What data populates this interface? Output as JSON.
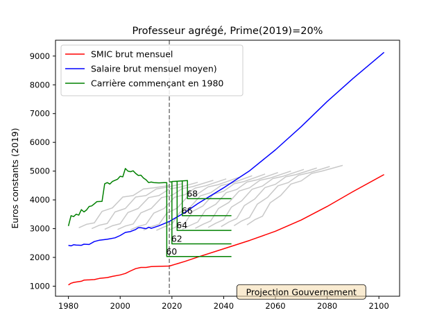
{
  "chart_data": {
    "type": "line",
    "title": "Professeur agrégé, Prime(2019)=20%",
    "xlabel": "",
    "ylabel": "Euros constants (2019)",
    "xlim": [
      1975,
      2108
    ],
    "ylim": [
      650,
      9550
    ],
    "xticks": [
      1980,
      2000,
      2020,
      2040,
      2060,
      2080,
      2100
    ],
    "yticks": [
      1000,
      2000,
      3000,
      4000,
      5000,
      6000,
      7000,
      8000,
      9000
    ],
    "grid": false,
    "legend_position": "top-left",
    "reference_line": {
      "x": 2019,
      "style": "dashed",
      "color": "#808080"
    },
    "annotation_box": {
      "text": "Projection Gouvernement",
      "x": 2070,
      "y": 800
    },
    "series": [
      {
        "name": "SMIC brut mensuel",
        "color": "#ff0000",
        "legend": true,
        "points": [
          [
            1980,
            1040
          ],
          [
            1981,
            1100
          ],
          [
            1982,
            1130
          ],
          [
            1983,
            1145
          ],
          [
            1985,
            1170
          ],
          [
            1986,
            1210
          ],
          [
            1990,
            1230
          ],
          [
            1992,
            1270
          ],
          [
            1995,
            1300
          ],
          [
            1997,
            1340
          ],
          [
            2000,
            1390
          ],
          [
            2002,
            1440
          ],
          [
            2004,
            1530
          ],
          [
            2006,
            1610
          ],
          [
            2008,
            1650
          ],
          [
            2010,
            1650
          ],
          [
            2012,
            1680
          ],
          [
            2015,
            1690
          ],
          [
            2019,
            1700
          ],
          [
            2025,
            1860
          ],
          [
            2030,
            2010
          ],
          [
            2040,
            2300
          ],
          [
            2050,
            2590
          ],
          [
            2060,
            2910
          ],
          [
            2070,
            3300
          ],
          [
            2080,
            3770
          ],
          [
            2090,
            4290
          ],
          [
            2102,
            4880
          ]
        ]
      },
      {
        "name": "Salaire brut mensuel moyen)",
        "color": "#0000ff",
        "legend": true,
        "points": [
          [
            1980,
            2420
          ],
          [
            1981,
            2400
          ],
          [
            1982,
            2440
          ],
          [
            1983,
            2430
          ],
          [
            1985,
            2420
          ],
          [
            1986,
            2460
          ],
          [
            1988,
            2450
          ],
          [
            1990,
            2550
          ],
          [
            1992,
            2600
          ],
          [
            1995,
            2630
          ],
          [
            1998,
            2680
          ],
          [
            2000,
            2760
          ],
          [
            2002,
            2870
          ],
          [
            2004,
            2900
          ],
          [
            2006,
            2970
          ],
          [
            2007,
            3030
          ],
          [
            2008,
            3030
          ],
          [
            2010,
            3000
          ],
          [
            2011,
            3050
          ],
          [
            2012,
            3010
          ],
          [
            2015,
            3100
          ],
          [
            2019,
            3250
          ],
          [
            2025,
            3560
          ],
          [
            2030,
            3870
          ],
          [
            2040,
            4420
          ],
          [
            2050,
            5010
          ],
          [
            2060,
            5740
          ],
          [
            2070,
            6550
          ],
          [
            2080,
            7420
          ],
          [
            2090,
            8220
          ],
          [
            2102,
            9130
          ]
        ]
      },
      {
        "name": "Carrière commençant en 1980",
        "color": "#008000",
        "legend": true,
        "points": [
          [
            1980,
            3090
          ],
          [
            1981,
            3450
          ],
          [
            1982,
            3420
          ],
          [
            1983,
            3500
          ],
          [
            1984,
            3470
          ],
          [
            1985,
            3660
          ],
          [
            1986,
            3580
          ],
          [
            1987,
            3650
          ],
          [
            1988,
            3770
          ],
          [
            1989,
            3790
          ],
          [
            1990,
            3860
          ],
          [
            1991,
            3940
          ],
          [
            1993,
            3950
          ],
          [
            1994,
            4560
          ],
          [
            1995,
            4600
          ],
          [
            1996,
            4550
          ],
          [
            1997,
            4640
          ],
          [
            1999,
            4720
          ],
          [
            2000,
            4820
          ],
          [
            2001,
            4800
          ],
          [
            2002,
            5090
          ],
          [
            2003,
            5000
          ],
          [
            2004,
            4980
          ],
          [
            2005,
            5010
          ],
          [
            2006,
            4920
          ],
          [
            2007,
            4850
          ],
          [
            2008,
            4860
          ],
          [
            2009,
            4760
          ],
          [
            2010,
            4700
          ],
          [
            2011,
            4600
          ],
          [
            2012,
            4620
          ],
          [
            2013,
            4600
          ],
          [
            2015,
            4590
          ],
          [
            2017,
            4600
          ],
          [
            2018,
            4600
          ],
          [
            2018,
            2030
          ],
          [
            2043,
            2030
          ]
        ]
      },
      {
        "name": "",
        "color": "#008000",
        "legend": false,
        "points": [
          [
            2019,
            4620
          ],
          [
            2020,
            4630
          ],
          [
            2020,
            2470
          ],
          [
            2043,
            2470
          ]
        ]
      },
      {
        "name": "",
        "color": "#008000",
        "legend": false,
        "points": [
          [
            2020,
            4640
          ],
          [
            2022,
            4650
          ],
          [
            2022,
            2940
          ],
          [
            2043,
            2940
          ]
        ]
      },
      {
        "name": "",
        "color": "#008000",
        "legend": false,
        "points": [
          [
            2022,
            4650
          ],
          [
            2024,
            4660
          ],
          [
            2024,
            3450
          ],
          [
            2043,
            3450
          ]
        ]
      },
      {
        "name": "",
        "color": "#008000",
        "legend": false,
        "points": [
          [
            2024,
            4660
          ],
          [
            2026,
            4670
          ],
          [
            2026,
            4040
          ],
          [
            2043,
            4040
          ]
        ]
      },
      {
        "name": "",
        "color": "#c8c8c8",
        "legend": false,
        "points": [
          [
            1984,
            3030
          ],
          [
            1987,
            3150
          ],
          [
            1990,
            3200
          ],
          [
            1993,
            3600
          ],
          [
            1997,
            3720
          ],
          [
            2001,
            4100
          ],
          [
            2005,
            4150
          ],
          [
            2009,
            4380
          ],
          [
            2013,
            4420
          ],
          [
            2019,
            4500
          ]
        ]
      },
      {
        "name": "",
        "color": "#c8c8c8",
        "legend": false,
        "points": [
          [
            1989,
            3000
          ],
          [
            1992,
            3120
          ],
          [
            1995,
            3180
          ],
          [
            1998,
            3580
          ],
          [
            2002,
            3700
          ],
          [
            2006,
            4100
          ],
          [
            2010,
            4150
          ],
          [
            2014,
            4380
          ],
          [
            2018,
            4440
          ],
          [
            2024,
            4560
          ]
        ]
      },
      {
        "name": "",
        "color": "#c8c8c8",
        "legend": false,
        "points": [
          [
            1994,
            2980
          ],
          [
            1997,
            3100
          ],
          [
            2000,
            3170
          ],
          [
            2003,
            3560
          ],
          [
            2007,
            3700
          ],
          [
            2011,
            4080
          ],
          [
            2015,
            4150
          ],
          [
            2019,
            4380
          ],
          [
            2023,
            4440
          ],
          [
            2030,
            4610
          ]
        ]
      },
      {
        "name": "",
        "color": "#c8c8c8",
        "legend": false,
        "points": [
          [
            1999,
            2970
          ],
          [
            2002,
            3090
          ],
          [
            2005,
            3160
          ],
          [
            2008,
            3550
          ],
          [
            2012,
            3700
          ],
          [
            2016,
            4080
          ],
          [
            2020,
            4160
          ],
          [
            2024,
            4390
          ],
          [
            2028,
            4460
          ],
          [
            2036,
            4680
          ]
        ]
      },
      {
        "name": "",
        "color": "#c8c8c8",
        "legend": false,
        "points": [
          [
            2004,
            2960
          ],
          [
            2007,
            3080
          ],
          [
            2010,
            3150
          ],
          [
            2013,
            3540
          ],
          [
            2017,
            3700
          ],
          [
            2021,
            4090
          ],
          [
            2025,
            4180
          ],
          [
            2029,
            4410
          ],
          [
            2033,
            4490
          ],
          [
            2041,
            4730
          ]
        ]
      },
      {
        "name": "",
        "color": "#c8c8c8",
        "legend": false,
        "points": [
          [
            2009,
            2950
          ],
          [
            2012,
            3070
          ],
          [
            2015,
            3150
          ],
          [
            2018,
            3540
          ],
          [
            2022,
            3710
          ],
          [
            2026,
            4110
          ],
          [
            2030,
            4210
          ],
          [
            2034,
            4450
          ],
          [
            2038,
            4530
          ],
          [
            2046,
            4790
          ]
        ]
      },
      {
        "name": "",
        "color": "#c8c8c8",
        "legend": false,
        "points": [
          [
            2014,
            2940
          ],
          [
            2017,
            3060
          ],
          [
            2020,
            3160
          ],
          [
            2023,
            3560
          ],
          [
            2027,
            3740
          ],
          [
            2031,
            4140
          ],
          [
            2035,
            4250
          ],
          [
            2039,
            4500
          ],
          [
            2043,
            4580
          ],
          [
            2051,
            4840
          ]
        ]
      },
      {
        "name": "",
        "color": "#c8c8c8",
        "legend": false,
        "points": [
          [
            2019,
            2950
          ],
          [
            2022,
            3080
          ],
          [
            2025,
            3190
          ],
          [
            2028,
            3600
          ],
          [
            2032,
            3790
          ],
          [
            2036,
            4190
          ],
          [
            2040,
            4300
          ],
          [
            2044,
            4560
          ],
          [
            2048,
            4640
          ],
          [
            2056,
            4900
          ]
        ]
      },
      {
        "name": "",
        "color": "#c8c8c8",
        "legend": false,
        "points": [
          [
            2024,
            2980
          ],
          [
            2027,
            3110
          ],
          [
            2030,
            3230
          ],
          [
            2033,
            3650
          ],
          [
            2037,
            3850
          ],
          [
            2041,
            4250
          ],
          [
            2045,
            4360
          ],
          [
            2049,
            4620
          ],
          [
            2053,
            4700
          ],
          [
            2061,
            4950
          ]
        ]
      },
      {
        "name": "",
        "color": "#c8c8c8",
        "legend": false,
        "points": [
          [
            2029,
            3010
          ],
          [
            2032,
            3150
          ],
          [
            2035,
            3270
          ],
          [
            2038,
            3700
          ],
          [
            2042,
            3910
          ],
          [
            2046,
            4310
          ],
          [
            2050,
            4420
          ],
          [
            2054,
            4680
          ],
          [
            2058,
            4760
          ],
          [
            2066,
            5000
          ]
        ]
      },
      {
        "name": "",
        "color": "#c8c8c8",
        "legend": false,
        "points": [
          [
            2034,
            3040
          ],
          [
            2037,
            3190
          ],
          [
            2040,
            3310
          ],
          [
            2043,
            3750
          ],
          [
            2047,
            3970
          ],
          [
            2051,
            4370
          ],
          [
            2055,
            4480
          ],
          [
            2059,
            4740
          ],
          [
            2063,
            4820
          ],
          [
            2071,
            5060
          ]
        ]
      },
      {
        "name": "",
        "color": "#c8c8c8",
        "legend": false,
        "points": [
          [
            2039,
            3070
          ],
          [
            2042,
            3230
          ],
          [
            2045,
            3350
          ],
          [
            2048,
            3800
          ],
          [
            2052,
            4030
          ],
          [
            2056,
            4430
          ],
          [
            2060,
            4540
          ],
          [
            2064,
            4800
          ],
          [
            2068,
            4880
          ],
          [
            2076,
            5110
          ]
        ]
      },
      {
        "name": "",
        "color": "#c8c8c8",
        "legend": false,
        "points": [
          [
            2044,
            3100
          ],
          [
            2047,
            3270
          ],
          [
            2050,
            3390
          ],
          [
            2053,
            3850
          ],
          [
            2057,
            4090
          ],
          [
            2061,
            4490
          ],
          [
            2065,
            4600
          ],
          [
            2069,
            4860
          ],
          [
            2073,
            4940
          ],
          [
            2081,
            5160
          ]
        ]
      },
      {
        "name": "",
        "color": "#c8c8c8",
        "legend": false,
        "points": [
          [
            2049,
            3130
          ],
          [
            2052,
            3310
          ],
          [
            2055,
            3430
          ],
          [
            2058,
            3900
          ],
          [
            2062,
            4150
          ],
          [
            2066,
            4550
          ],
          [
            2070,
            4660
          ],
          [
            2074,
            4920
          ],
          [
            2078,
            5000
          ],
          [
            2086,
            5200
          ]
        ]
      }
    ],
    "annotations": [
      {
        "text": "60",
        "x": 2018,
        "y": 2030
      },
      {
        "text": "62",
        "x": 2020,
        "y": 2470
      },
      {
        "text": "64",
        "x": 2022,
        "y": 2940
      },
      {
        "text": "66",
        "x": 2024,
        "y": 3450
      },
      {
        "text": "68",
        "x": 2026,
        "y": 4040
      }
    ]
  }
}
